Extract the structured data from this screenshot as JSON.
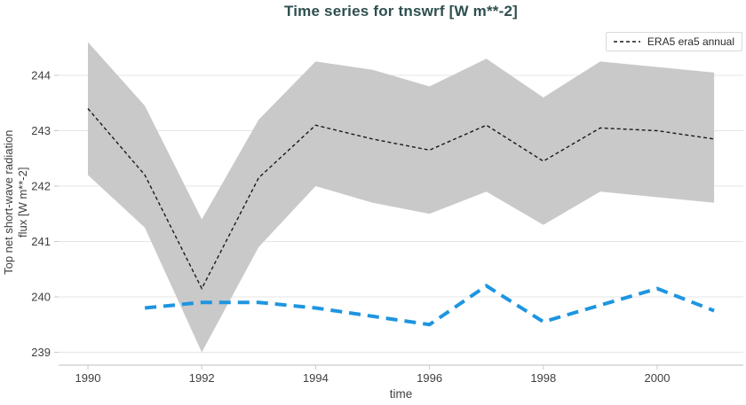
{
  "title": "Time series for tnswrf [W m**-2]",
  "legend": {
    "entries": [
      {
        "label": "ERA5 era5 annual",
        "color": "#1a1a1a",
        "line_style": "dashed"
      }
    ]
  },
  "axes": {
    "x": {
      "label": "time",
      "ticks": [
        1990,
        1992,
        1994,
        1996,
        1998,
        2000
      ],
      "range": [
        1989.5,
        2001.5
      ]
    },
    "y": {
      "label": "Top net short-wave radiation\nflux [W m**-2]",
      "ticks": [
        239,
        240,
        241,
        242,
        243,
        244
      ],
      "range": [
        238.8,
        244.85
      ]
    }
  },
  "colors": {
    "title": "#2f4f4f",
    "grid": "#e5e5e5",
    "spine": "#c9c9c9",
    "tick_label": "#3f3f3f",
    "band": "#c9c9c9",
    "mean_line": "#1a1a1a",
    "blue_line": "#1e95e0",
    "legend_border": "#d9d9d9"
  },
  "chart_data": {
    "type": "line",
    "title": "Time series for tnswrf [W m**-2]",
    "xlabel": "time",
    "ylabel": "Top net short-wave radiation flux [W m**-2]",
    "xlim": [
      1989.5,
      2001.5
    ],
    "ylim": [
      238.8,
      244.85
    ],
    "grid": true,
    "legend_position": "top-right",
    "x": [
      1990,
      1991,
      1992,
      1993,
      1994,
      1995,
      1996,
      1997,
      1998,
      1999,
      2000,
      2001
    ],
    "series": [
      {
        "name": "ERA5 era5 annual",
        "kind": "line-dashed",
        "color": "#1a1a1a",
        "values": [
          243.4,
          242.2,
          240.15,
          242.15,
          243.1,
          242.85,
          242.65,
          243.1,
          242.45,
          243.05,
          243.0,
          242.85
        ]
      },
      {
        "name": "ERA5 era5 annual uncertainty band",
        "kind": "band",
        "color": "#c9c9c9",
        "upper": [
          244.6,
          243.45,
          241.4,
          243.2,
          244.25,
          244.1,
          243.8,
          244.3,
          243.6,
          244.25,
          244.15,
          244.05
        ],
        "lower": [
          242.2,
          241.25,
          239.0,
          240.9,
          242.0,
          241.7,
          241.5,
          241.9,
          241.3,
          241.9,
          241.8,
          241.7
        ]
      },
      {
        "name": "unlabeled blue series",
        "kind": "line-dashed-thick",
        "color": "#1e95e0",
        "x": [
          1991,
          1992,
          1993,
          1994,
          1995,
          1996,
          1997,
          1998,
          1999,
          2000,
          2001
        ],
        "values": [
          239.8,
          239.9,
          239.9,
          239.8,
          239.65,
          239.5,
          240.2,
          239.55,
          239.85,
          240.15,
          239.75
        ]
      }
    ]
  }
}
